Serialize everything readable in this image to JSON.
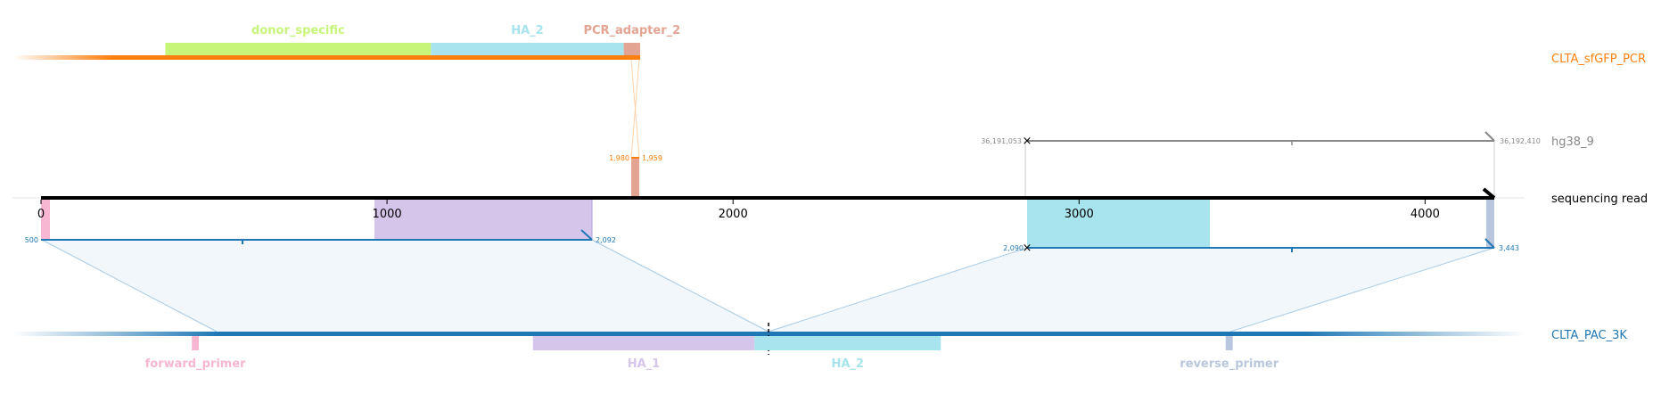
{
  "colors": {
    "orange": "#ff7f0e",
    "orange_light": "#ffd2a8",
    "blue": "#1f77b4",
    "blue_light": "#a9cbe6",
    "gray": "#888888",
    "black": "#000000",
    "donor_specific": "#c7f57a",
    "ha_2": "#a8e4ed",
    "ha_1": "#d6c5ea",
    "pcr_adapter": "#e3a493",
    "forward_primer": "#f7b6d2",
    "reverse_primer": "#b9c7de"
  },
  "sequences": {
    "donor": "CLTA_sfGFP_PCR",
    "genome": "hg38_9",
    "read": "sequencing read",
    "target": "CLTA_PAC_3K"
  },
  "read_axis": {
    "min": 0,
    "max": 4200,
    "ticks": [
      {
        "value": 0,
        "label": "0"
      },
      {
        "value": 1000,
        "label": "1000"
      },
      {
        "value": 2000,
        "label": "2000"
      },
      {
        "value": 3000,
        "label": "3000"
      },
      {
        "value": 4000,
        "label": "4000"
      }
    ]
  },
  "top_features": [
    {
      "name": "donor_specific",
      "start": 420,
      "end": 1150,
      "color": "#c7f57a"
    },
    {
      "name": "HA_2",
      "start": 1150,
      "end": 1680,
      "color": "#a8e4ed"
    },
    {
      "name": "PCR_adapter_2",
      "start": 1680,
      "end": 1725,
      "color": "#e3a493"
    }
  ],
  "bottom_features": [
    {
      "name": "forward_primer",
      "start": 510,
      "end": 530,
      "color": "#f7b6d2"
    },
    {
      "name": "HA_1",
      "start": 1480,
      "end": 2110,
      "color": "#d6c5ea"
    },
    {
      "name": "HA_2",
      "start": 2110,
      "end": 2640,
      "color": "#a8e4ed"
    },
    {
      "name": "reverse_primer",
      "start": 3450,
      "end": 3470,
      "color": "#b9c7de"
    }
  ],
  "read_feature_spans": [
    {
      "name": "forward_primer",
      "start": 0,
      "end": 25,
      "color": "#f7b6d2"
    },
    {
      "name": "HA_1",
      "start": 965,
      "end": 1595,
      "color": "#d6c5ea"
    },
    {
      "name": "PCR_adapter_2",
      "start": 1710,
      "end": 1730,
      "color": "#e3a493"
    },
    {
      "name": "HA_2",
      "start": 2855,
      "end": 3385,
      "color": "#a8e4ed"
    },
    {
      "name": "reverse_primer",
      "start": 4180,
      "end": 4200,
      "color": "#b9c7de"
    }
  ],
  "donor_alignment": {
    "left": "1,980",
    "right": "1,959"
  },
  "genome_alignment": {
    "left": "36,191,053",
    "right": "36,192,410"
  },
  "target_alignments": [
    {
      "left": "500",
      "right": "2,092"
    },
    {
      "left": "2,090",
      "right": "3,443"
    }
  ],
  "cut_site": 2110
}
